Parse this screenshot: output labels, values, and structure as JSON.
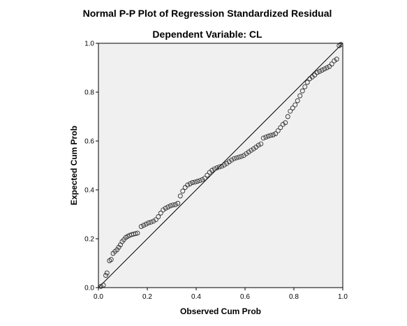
{
  "chart_data": {
    "type": "scatter",
    "title": "Normal P-P Plot of Regression Standardized Residual",
    "subtitle": "Dependent Variable: CL",
    "xlabel": "Observed Cum Prob",
    "ylabel": "Expected Cum Prob",
    "xlim": [
      0,
      1
    ],
    "ylim": [
      0,
      1
    ],
    "x_ticks": [
      "0.0",
      "0.2",
      "0.4",
      "0.6",
      "0.8",
      "1.0"
    ],
    "y_ticks": [
      "0.0",
      "0.2",
      "0.4",
      "0.6",
      "0.8",
      "1.0"
    ],
    "grid": false,
    "reference_line": [
      [
        0,
        0
      ],
      [
        1,
        1
      ]
    ],
    "colors": {
      "plot_background": "#f0f0f0",
      "marker_stroke": "#333333",
      "axis": "#000000"
    },
    "points": [
      [
        0.01,
        0.005
      ],
      [
        0.02,
        0.01
      ],
      [
        0.03,
        0.05
      ],
      [
        0.035,
        0.06
      ],
      [
        0.045,
        0.11
      ],
      [
        0.052,
        0.115
      ],
      [
        0.06,
        0.14
      ],
      [
        0.068,
        0.148
      ],
      [
        0.076,
        0.155
      ],
      [
        0.083,
        0.165
      ],
      [
        0.09,
        0.175
      ],
      [
        0.097,
        0.188
      ],
      [
        0.104,
        0.196
      ],
      [
        0.112,
        0.205
      ],
      [
        0.12,
        0.21
      ],
      [
        0.128,
        0.214
      ],
      [
        0.136,
        0.217
      ],
      [
        0.144,
        0.219
      ],
      [
        0.152,
        0.221
      ],
      [
        0.16,
        0.223
      ],
      [
        0.175,
        0.25
      ],
      [
        0.185,
        0.255
      ],
      [
        0.195,
        0.26
      ],
      [
        0.205,
        0.265
      ],
      [
        0.215,
        0.268
      ],
      [
        0.225,
        0.272
      ],
      [
        0.235,
        0.278
      ],
      [
        0.245,
        0.29
      ],
      [
        0.255,
        0.305
      ],
      [
        0.265,
        0.318
      ],
      [
        0.275,
        0.325
      ],
      [
        0.285,
        0.33
      ],
      [
        0.295,
        0.335
      ],
      [
        0.305,
        0.338
      ],
      [
        0.315,
        0.34
      ],
      [
        0.325,
        0.345
      ],
      [
        0.335,
        0.375
      ],
      [
        0.345,
        0.395
      ],
      [
        0.355,
        0.41
      ],
      [
        0.365,
        0.42
      ],
      [
        0.375,
        0.425
      ],
      [
        0.385,
        0.43
      ],
      [
        0.395,
        0.432
      ],
      [
        0.405,
        0.435
      ],
      [
        0.415,
        0.438
      ],
      [
        0.425,
        0.442
      ],
      [
        0.435,
        0.448
      ],
      [
        0.445,
        0.46
      ],
      [
        0.455,
        0.472
      ],
      [
        0.465,
        0.48
      ],
      [
        0.475,
        0.486
      ],
      [
        0.485,
        0.49
      ],
      [
        0.495,
        0.494
      ],
      [
        0.505,
        0.497
      ],
      [
        0.515,
        0.502
      ],
      [
        0.525,
        0.508
      ],
      [
        0.535,
        0.515
      ],
      [
        0.545,
        0.522
      ],
      [
        0.555,
        0.528
      ],
      [
        0.565,
        0.531
      ],
      [
        0.575,
        0.534
      ],
      [
        0.585,
        0.537
      ],
      [
        0.595,
        0.541
      ],
      [
        0.605,
        0.548
      ],
      [
        0.615,
        0.555
      ],
      [
        0.625,
        0.562
      ],
      [
        0.635,
        0.568
      ],
      [
        0.645,
        0.575
      ],
      [
        0.655,
        0.583
      ],
      [
        0.665,
        0.588
      ],
      [
        0.675,
        0.612
      ],
      [
        0.685,
        0.616
      ],
      [
        0.695,
        0.62
      ],
      [
        0.705,
        0.623
      ],
      [
        0.715,
        0.625
      ],
      [
        0.725,
        0.63
      ],
      [
        0.735,
        0.642
      ],
      [
        0.745,
        0.655
      ],
      [
        0.755,
        0.668
      ],
      [
        0.765,
        0.675
      ],
      [
        0.775,
        0.7
      ],
      [
        0.785,
        0.722
      ],
      [
        0.795,
        0.735
      ],
      [
        0.805,
        0.748
      ],
      [
        0.815,
        0.765
      ],
      [
        0.825,
        0.785
      ],
      [
        0.835,
        0.805
      ],
      [
        0.845,
        0.822
      ],
      [
        0.855,
        0.84
      ],
      [
        0.865,
        0.855
      ],
      [
        0.875,
        0.862
      ],
      [
        0.885,
        0.87
      ],
      [
        0.895,
        0.88
      ],
      [
        0.905,
        0.885
      ],
      [
        0.915,
        0.89
      ],
      [
        0.925,
        0.895
      ],
      [
        0.935,
        0.9
      ],
      [
        0.945,
        0.905
      ],
      [
        0.955,
        0.915
      ],
      [
        0.965,
        0.928
      ],
      [
        0.975,
        0.935
      ],
      [
        0.985,
        0.99
      ],
      [
        0.992,
        0.995
      ]
    ]
  }
}
